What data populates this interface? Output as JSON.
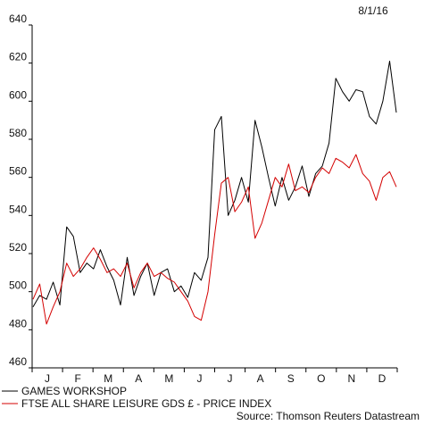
{
  "chart_data": {
    "type": "line",
    "date_label": "8/1/16",
    "source": "Source: Thomson Reuters Datastream",
    "ylim": [
      460,
      640
    ],
    "yticks": [
      460,
      480,
      500,
      520,
      540,
      560,
      580,
      600,
      620,
      640
    ],
    "x_labels": [
      "J",
      "F",
      "M",
      "A",
      "M",
      "J",
      "J",
      "A",
      "S",
      "O",
      "N",
      "D"
    ],
    "grid": false,
    "legend_position": "bottom-left",
    "x": [
      "Jan-1",
      "Jan-8",
      "Jan-15",
      "Jan-22",
      "Jan-29",
      "Feb-5",
      "Feb-12",
      "Feb-19",
      "Feb-26",
      "Mar-4",
      "Mar-11",
      "Mar-18",
      "Mar-25",
      "Apr-1",
      "Apr-8",
      "Apr-15",
      "Apr-22",
      "Apr-29",
      "May-6",
      "May-13",
      "May-20",
      "May-27",
      "Jun-3",
      "Jun-10",
      "Jun-17",
      "Jun-24",
      "Jul-1",
      "Jul-8",
      "Jul-15",
      "Jul-22",
      "Jul-29",
      "Aug-5",
      "Aug-12",
      "Aug-19",
      "Aug-26",
      "Sep-2",
      "Sep-9",
      "Sep-16",
      "Sep-23",
      "Sep-30",
      "Oct-7",
      "Oct-14",
      "Oct-21",
      "Oct-28",
      "Nov-4",
      "Nov-11",
      "Nov-18",
      "Nov-25",
      "Dec-2",
      "Dec-9",
      "Dec-16",
      "Dec-23",
      "Dec-30",
      "Jan-6",
      "Jan-8"
    ],
    "series": [
      {
        "name": "GAMES WORKSHOP",
        "color": "#000000",
        "values": [
          492,
          498,
          496,
          505,
          493,
          534,
          529,
          510,
          515,
          512,
          522,
          513,
          506,
          493,
          518,
          498,
          508,
          515,
          498,
          510,
          512,
          500,
          503,
          497,
          510,
          506,
          518,
          585,
          592,
          540,
          548,
          560,
          547,
          590,
          576,
          560,
          545,
          560,
          548,
          555,
          566,
          550,
          562,
          566,
          578,
          612,
          605,
          600,
          606,
          605,
          592,
          588,
          600,
          621,
          594
        ]
      },
      {
        "name": "FTSE ALL SHARE LEISURE GDS £ - PRICE INDEX",
        "color": "#d40000",
        "values": [
          496,
          504,
          483,
          492,
          500,
          515,
          508,
          512,
          518,
          523,
          517,
          510,
          512,
          508,
          515,
          502,
          510,
          515,
          508,
          510,
          507,
          505,
          500,
          495,
          487,
          485,
          500,
          530,
          557,
          560,
          542,
          547,
          555,
          528,
          536,
          548,
          560,
          555,
          567,
          553,
          555,
          552,
          560,
          565,
          562,
          570,
          568,
          565,
          572,
          562,
          558,
          548,
          560,
          563,
          555
        ]
      }
    ]
  }
}
